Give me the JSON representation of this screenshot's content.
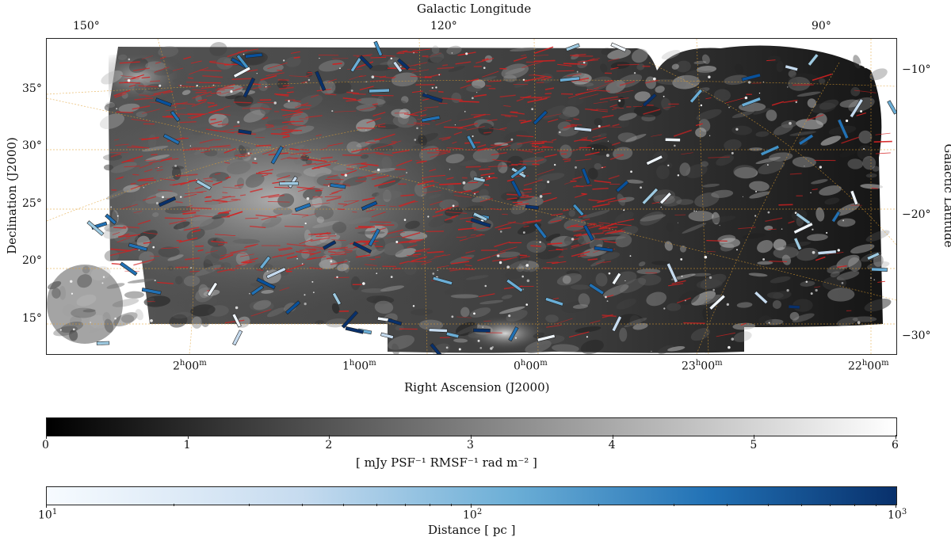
{
  "map": {
    "top_axis_label": "Galactic Longitude",
    "top_ticks": [
      "150°",
      "120°",
      "90°"
    ],
    "left_axis_label": "Declination (J2000)",
    "left_ticks": [
      "35°",
      "30°",
      "25°",
      "20°",
      "15°"
    ],
    "right_axis_label": "Galactic Latitude",
    "right_ticks": [
      "−10°",
      "−20°",
      "−30°"
    ],
    "bottom_axis_label": "Right Ascension (J2000)",
    "bottom_ticks": [
      {
        "h": "2",
        "m": "00"
      },
      {
        "h": "1",
        "m": "00"
      },
      {
        "h": "0",
        "m": "00"
      },
      {
        "h": "23",
        "m": "00"
      },
      {
        "h": "22",
        "m": "00"
      }
    ],
    "colors": {
      "background_map": "#3a3a3a",
      "filaments": "#d42020",
      "grid_lines": "#e0a030",
      "star_bars_dark": "#0b3b7a",
      "star_bars_light": "#c8dff0"
    }
  },
  "colorbar_intensity": {
    "ticks": [
      "0",
      "1",
      "2",
      "3",
      "4",
      "5",
      "6"
    ],
    "label": "[ mJy PSF⁻¹ RMSF⁻¹ rad m⁻² ]",
    "range": [
      0,
      6
    ],
    "colormap": "greys"
  },
  "colorbar_distance": {
    "ticks": [
      {
        "base": "10",
        "exp": "1"
      },
      {
        "base": "10",
        "exp": "2"
      },
      {
        "base": "10",
        "exp": "3"
      }
    ],
    "label": "Distance [ pc ]",
    "scale": "log",
    "colormap": "blues"
  }
}
